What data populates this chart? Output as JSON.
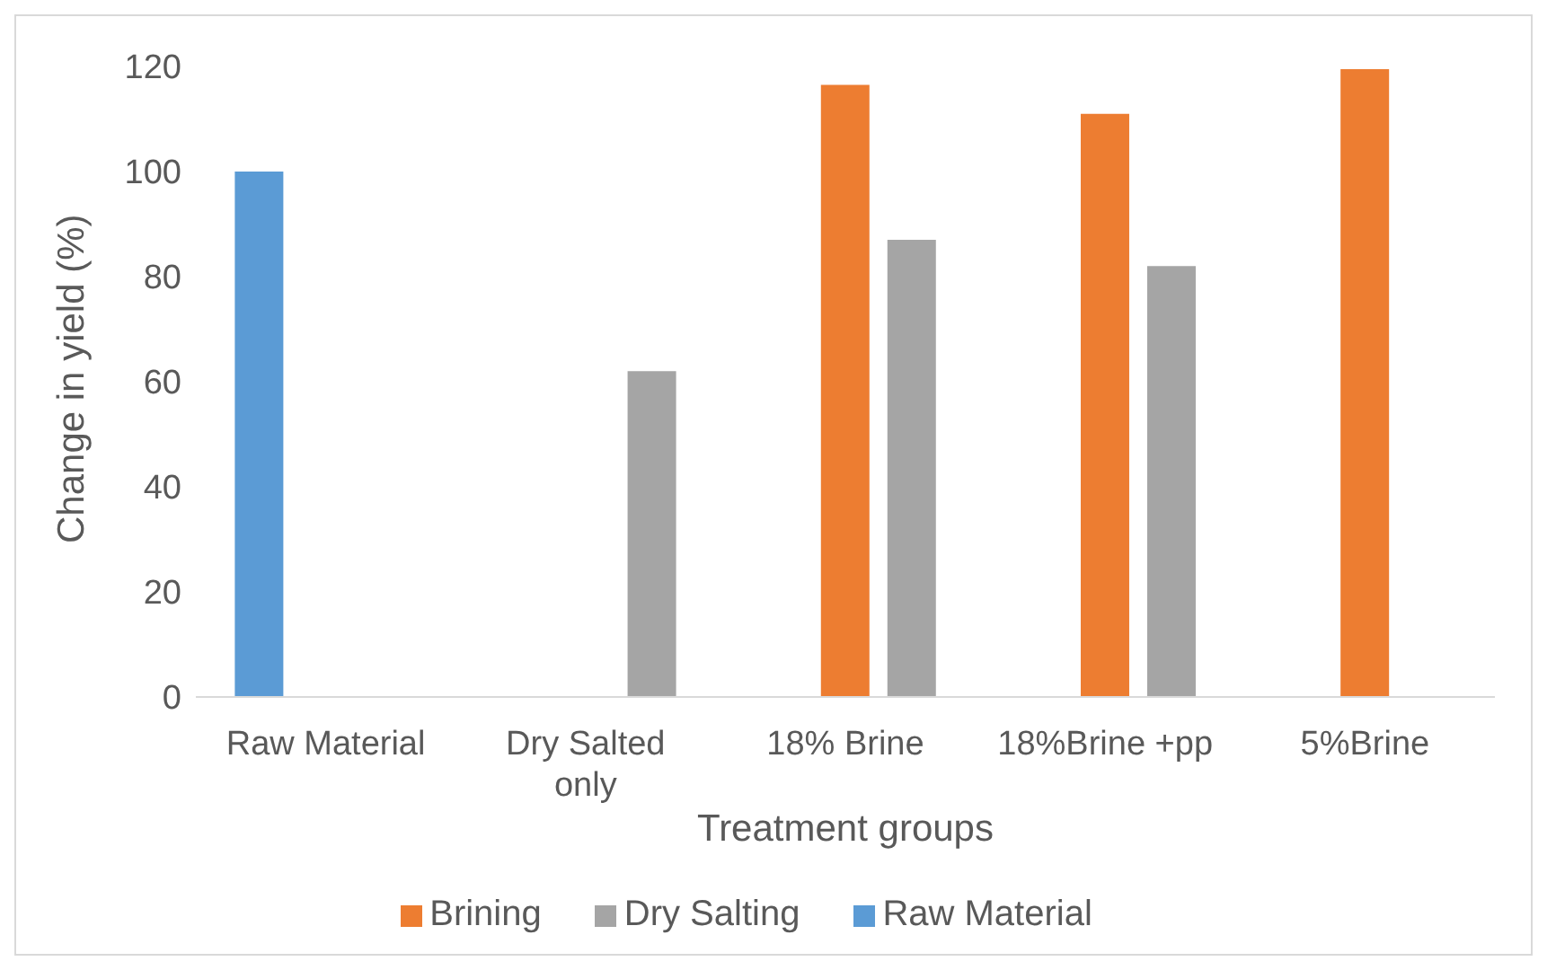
{
  "chart_data": {
    "type": "bar",
    "xlabel": "Treatment groups",
    "ylabel": "Change in yield (%)",
    "categories": [
      "Raw Material",
      "Dry Salted only",
      "18% Brine",
      "18%Brine +pp",
      "5%Brine"
    ],
    "series": [
      {
        "name": "Raw Material",
        "color": "#5b9bd5",
        "values": [
          100,
          null,
          null,
          null,
          null
        ]
      },
      {
        "name": "Brining",
        "color": "#ed7d31",
        "values": [
          null,
          null,
          116.5,
          111,
          119.5
        ]
      },
      {
        "name": "Dry Salting",
        "color": "#a5a5a5",
        "values": [
          null,
          62,
          87,
          82,
          null
        ]
      }
    ],
    "ylim": [
      0,
      120
    ],
    "yticks": [
      0,
      20,
      40,
      60,
      80,
      100,
      120
    ],
    "grid": false,
    "legend": "bottom"
  }
}
